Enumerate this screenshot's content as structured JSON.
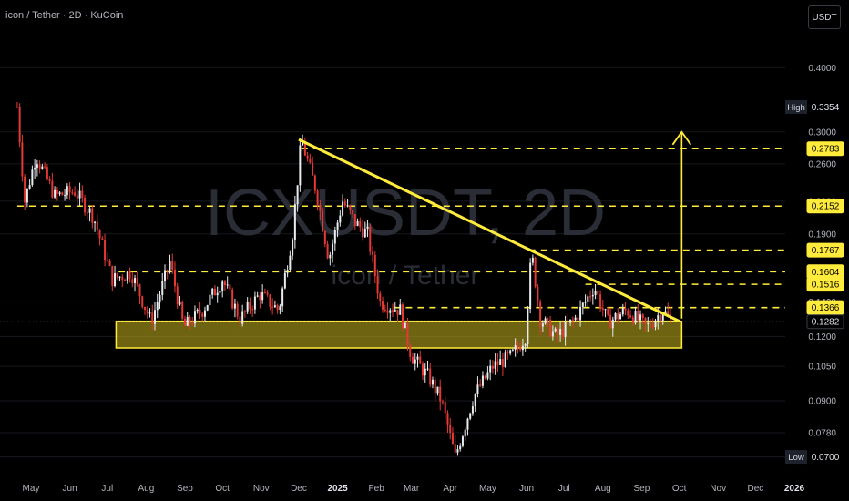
{
  "header": {
    "symbol_info": "icon / Tether · 2D · KuCoin",
    "currency_button": "USDT"
  },
  "watermark": {
    "ticker": "ICXUSDT, 2D",
    "name": "icon / Tether"
  },
  "colors": {
    "background": "#000000",
    "up": "#e8ecef",
    "down": "#e53935",
    "pattern": "#ffeb3b",
    "support_fill": "rgba(200,180,30,0.55)",
    "grid": "#16181e"
  },
  "chart_data": {
    "type": "candlestick",
    "y_scale": "log",
    "ylim": [
      0.066,
      0.46
    ],
    "x_axis_labels": [
      "May",
      "Jun",
      "Jul",
      "Aug",
      "Sep",
      "Oct",
      "Nov",
      "Dec",
      "2025",
      "Feb",
      "Mar",
      "Apr",
      "May",
      "Jun",
      "Jul",
      "Aug",
      "Sep",
      "Oct",
      "Nov",
      "Dec",
      "2026"
    ],
    "y_tick_labels": [
      "0.4000",
      "0.3000",
      "0.2600",
      "0.2200",
      "0.1900",
      "0.1400",
      "0.1200",
      "0.1050",
      "0.0900",
      "0.0780",
      "0.0700"
    ],
    "price_markers": [
      {
        "label": "High",
        "value": "0.3354",
        "type": "extreme"
      },
      {
        "label": "",
        "value": "0.2783",
        "type": "level"
      },
      {
        "label": "",
        "value": "0.2152",
        "type": "level"
      },
      {
        "label": "",
        "value": "0.1767",
        "type": "level"
      },
      {
        "label": "",
        "value": "0.1604",
        "type": "level"
      },
      {
        "label": "",
        "value": "0.1516",
        "type": "level"
      },
      {
        "label": "",
        "value": "0.1366",
        "type": "level"
      },
      {
        "label": "",
        "value": "0.1282",
        "type": "current"
      },
      {
        "label": "Low",
        "value": "0.0700",
        "type": "extreme"
      }
    ],
    "horizontal_levels": [
      0.2783,
      0.2152,
      0.1767,
      0.1604,
      0.1516,
      0.1366
    ],
    "support_zone": [
      0.114,
      0.1285
    ],
    "descending_trendline": {
      "from": [
        "2024-12-01",
        0.29
      ],
      "to": [
        "2025-10-01",
        0.1285
      ]
    },
    "breakout_target": 0.3,
    "price_path": [
      [
        "2024-04-20",
        0.3354
      ],
      [
        "2024-04-26",
        0.22
      ],
      [
        "2024-05-05",
        0.27
      ],
      [
        "2024-05-20",
        0.225
      ],
      [
        "2024-06-05",
        0.23
      ],
      [
        "2024-06-20",
        0.205
      ],
      [
        "2024-07-05",
        0.155
      ],
      [
        "2024-07-20",
        0.16
      ],
      [
        "2024-08-05",
        0.128
      ],
      [
        "2024-08-20",
        0.168
      ],
      [
        "2024-08-31",
        0.125
      ],
      [
        "2024-09-15",
        0.135
      ],
      [
        "2024-10-01",
        0.155
      ],
      [
        "2024-10-15",
        0.13
      ],
      [
        "2024-10-31",
        0.145
      ],
      [
        "2024-11-15",
        0.135
      ],
      [
        "2024-11-26",
        0.19
      ],
      [
        "2024-12-03",
        0.29
      ],
      [
        "2024-12-15",
        0.23
      ],
      [
        "2024-12-25",
        0.17
      ],
      [
        "2025-01-05",
        0.22
      ],
      [
        "2025-01-15",
        0.2
      ],
      [
        "2025-01-25",
        0.19
      ],
      [
        "2025-02-04",
        0.14
      ],
      [
        "2025-02-20",
        0.135
      ],
      [
        "2025-03-01",
        0.11
      ],
      [
        "2025-03-15",
        0.1
      ],
      [
        "2025-03-25",
        0.09
      ],
      [
        "2025-04-05",
        0.07
      ],
      [
        "2025-04-20",
        0.092
      ],
      [
        "2025-05-05",
        0.105
      ],
      [
        "2025-05-20",
        0.11
      ],
      [
        "2025-05-31",
        0.12
      ],
      [
        "2025-06-05",
        0.175
      ],
      [
        "2025-06-12",
        0.13
      ],
      [
        "2025-06-25",
        0.12
      ],
      [
        "2025-07-10",
        0.13
      ],
      [
        "2025-07-25",
        0.15
      ],
      [
        "2025-08-05",
        0.128
      ],
      [
        "2025-08-20",
        0.135
      ],
      [
        "2025-09-05",
        0.125
      ],
      [
        "2025-09-18",
        0.135
      ],
      [
        "2025-09-25",
        0.1282
      ]
    ]
  }
}
